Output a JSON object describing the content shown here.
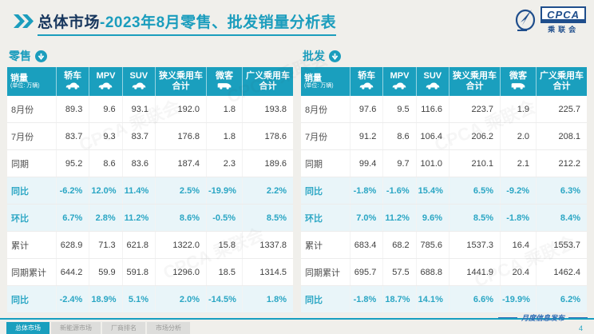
{
  "header": {
    "title_prefix": "总体市场",
    "title_rest": "-2023年8月零售、批发销量分析表",
    "logo_text": "CPCA",
    "logo_subtext": "乘联会"
  },
  "table_columns": [
    {
      "key": "sales",
      "label": "销量",
      "sub": "(单位: 万辆)"
    },
    {
      "key": "sedan",
      "label": "轿车",
      "icon": "sedan"
    },
    {
      "key": "mpv",
      "label": "MPV",
      "icon": "mpv"
    },
    {
      "key": "suv",
      "label": "SUV",
      "icon": "suv"
    },
    {
      "key": "narrow-pc-total",
      "label": "狭义乘用车",
      "label2": "合计"
    },
    {
      "key": "minibus",
      "label": "微客",
      "icon": "minibus"
    },
    {
      "key": "broad-pc-total",
      "label": "广义乘用车",
      "label2": "合计"
    }
  ],
  "tables": [
    {
      "id": "retail",
      "label": "零售",
      "rows": [
        {
          "label": "8月份",
          "highlight": false,
          "values": [
            "89.3",
            "9.6",
            "93.1",
            "192.0",
            "1.8",
            "193.8"
          ]
        },
        {
          "label": "7月份",
          "highlight": false,
          "values": [
            "83.7",
            "9.3",
            "83.7",
            "176.8",
            "1.8",
            "178.6"
          ]
        },
        {
          "label": "同期",
          "highlight": false,
          "values": [
            "95.2",
            "8.6",
            "83.6",
            "187.4",
            "2.3",
            "189.6"
          ]
        },
        {
          "label": "同比",
          "highlight": true,
          "values": [
            "-6.2%",
            "12.0%",
            "11.4%",
            "2.5%",
            "-19.9%",
            "2.2%"
          ]
        },
        {
          "label": "环比",
          "highlight": true,
          "values": [
            "6.7%",
            "2.8%",
            "11.2%",
            "8.6%",
            "-0.5%",
            "8.5%"
          ]
        },
        {
          "label": "累计",
          "highlight": false,
          "values": [
            "628.9",
            "71.3",
            "621.8",
            "1322.0",
            "15.8",
            "1337.8"
          ]
        },
        {
          "label": "同期累计",
          "highlight": false,
          "values": [
            "644.2",
            "59.9",
            "591.8",
            "1296.0",
            "18.5",
            "1314.5"
          ]
        },
        {
          "label": "同比",
          "highlight": true,
          "values": [
            "-2.4%",
            "18.9%",
            "5.1%",
            "2.0%",
            "-14.5%",
            "1.8%"
          ]
        }
      ]
    },
    {
      "id": "wholesale",
      "label": "批发",
      "rows": [
        {
          "label": "8月份",
          "highlight": false,
          "values": [
            "97.6",
            "9.5",
            "116.6",
            "223.7",
            "1.9",
            "225.7"
          ]
        },
        {
          "label": "7月份",
          "highlight": false,
          "values": [
            "91.2",
            "8.6",
            "106.4",
            "206.2",
            "2.0",
            "208.1"
          ]
        },
        {
          "label": "同期",
          "highlight": false,
          "values": [
            "99.4",
            "9.7",
            "101.0",
            "210.1",
            "2.1",
            "212.2"
          ]
        },
        {
          "label": "同比",
          "highlight": true,
          "values": [
            "-1.8%",
            "-1.6%",
            "15.4%",
            "6.5%",
            "-9.2%",
            "6.3%"
          ]
        },
        {
          "label": "环比",
          "highlight": true,
          "values": [
            "7.0%",
            "11.2%",
            "9.6%",
            "8.5%",
            "-1.8%",
            "8.4%"
          ]
        },
        {
          "label": "累计",
          "highlight": false,
          "values": [
            "683.4",
            "68.2",
            "785.6",
            "1537.3",
            "16.4",
            "1553.7"
          ]
        },
        {
          "label": "同期累计",
          "highlight": false,
          "values": [
            "695.7",
            "57.5",
            "688.8",
            "1441.9",
            "20.4",
            "1462.4"
          ]
        },
        {
          "label": "同比",
          "highlight": true,
          "values": [
            "-1.8%",
            "18.7%",
            "14.1%",
            "6.6%",
            "-19.9%",
            "6.2%"
          ]
        }
      ]
    }
  ],
  "footer": {
    "tabs": [
      {
        "label": "总体市场",
        "active": true
      },
      {
        "label": "新能源市场",
        "active": false
      },
      {
        "label": "厂商排名",
        "active": false
      },
      {
        "label": "市场分析",
        "active": false
      }
    ],
    "note": "月度信息发布",
    "page": "4"
  },
  "watermark": "CPCA 乘联会",
  "colors": {
    "accent_teal": "#1a9fbe",
    "dark_navy": "#17365d",
    "logo_blue": "#1f4e8c",
    "highlight_row_bg": "#e9f5f9",
    "highlight_text": "#2aa6c4"
  }
}
